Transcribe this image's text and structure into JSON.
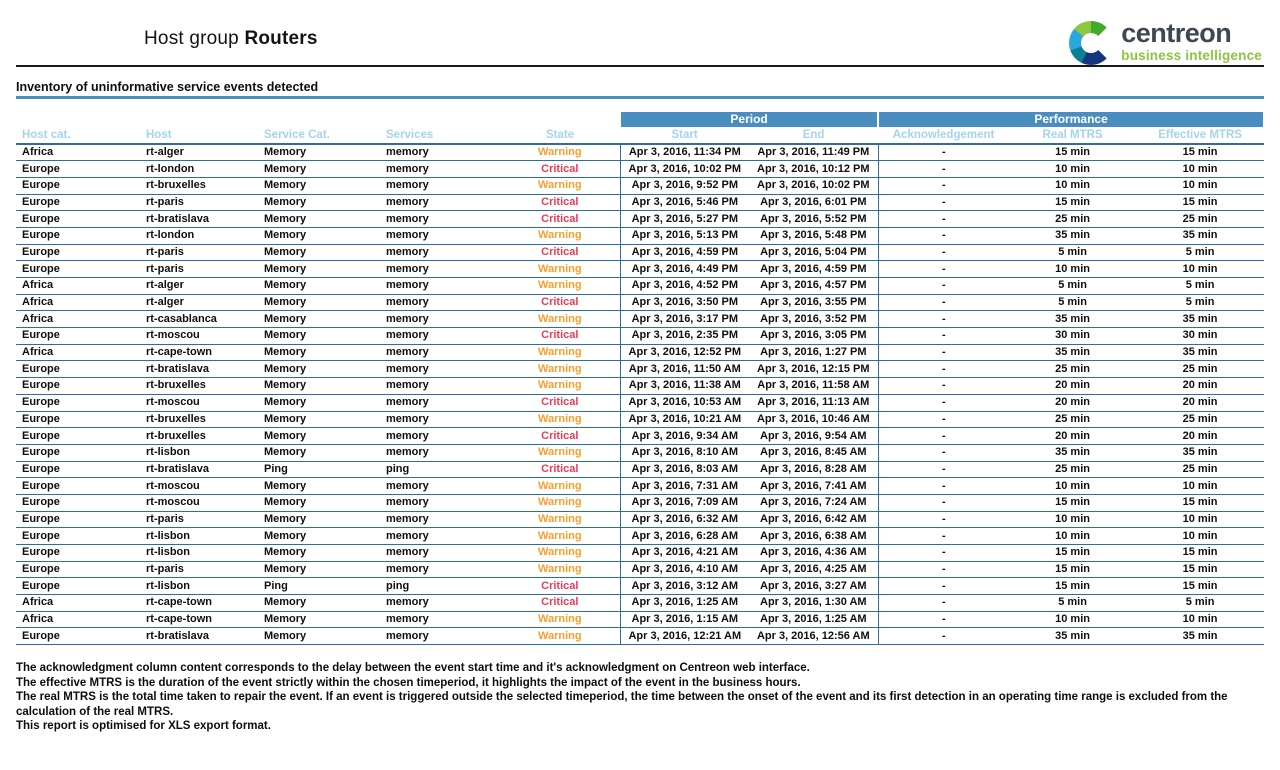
{
  "header": {
    "title_regular": "Host group",
    "title_bold": "Routers"
  },
  "logo": {
    "brand": "centreon",
    "tagline": "business intelligence"
  },
  "section_title": "Inventory of uninformative service events detected",
  "table": {
    "groups": {
      "period": "Period",
      "performance": "Performance"
    },
    "columns": [
      {
        "key": "host_cat",
        "label": "Host cat.",
        "align": "left"
      },
      {
        "key": "host",
        "label": "Host",
        "align": "left"
      },
      {
        "key": "service_cat",
        "label": "Service Cat.",
        "align": "left"
      },
      {
        "key": "services",
        "label": "Services",
        "align": "left"
      },
      {
        "key": "state",
        "label": "State",
        "align": "center"
      },
      {
        "key": "start",
        "label": "Start",
        "align": "center",
        "vline": true
      },
      {
        "key": "end",
        "label": "End",
        "align": "center"
      },
      {
        "key": "ack",
        "label": "Acknowledgement",
        "align": "center",
        "vline": true
      },
      {
        "key": "real_mtrs",
        "label": "Real MTRS",
        "align": "center"
      },
      {
        "key": "effective_mtrs",
        "label": "Effective MTRS",
        "align": "center"
      }
    ],
    "rows": [
      {
        "host_cat": "Africa",
        "host": "rt-alger",
        "service_cat": "Memory",
        "services": "memory",
        "state": "Warning",
        "start": "Apr 3, 2016, 11:34 PM",
        "end": "Apr 3, 2016, 11:49 PM",
        "ack": "-",
        "real_mtrs": "15 min",
        "effective_mtrs": "15 min"
      },
      {
        "host_cat": "Europe",
        "host": "rt-london",
        "service_cat": "Memory",
        "services": "memory",
        "state": "Critical",
        "start": "Apr 3, 2016, 10:02 PM",
        "end": "Apr 3, 2016, 10:12 PM",
        "ack": "-",
        "real_mtrs": "10 min",
        "effective_mtrs": "10 min"
      },
      {
        "host_cat": "Europe",
        "host": "rt-bruxelles",
        "service_cat": "Memory",
        "services": "memory",
        "state": "Warning",
        "start": "Apr 3, 2016, 9:52 PM",
        "end": "Apr 3, 2016, 10:02 PM",
        "ack": "-",
        "real_mtrs": "10 min",
        "effective_mtrs": "10 min"
      },
      {
        "host_cat": "Europe",
        "host": "rt-paris",
        "service_cat": "Memory",
        "services": "memory",
        "state": "Critical",
        "start": "Apr 3, 2016, 5:46 PM",
        "end": "Apr 3, 2016, 6:01 PM",
        "ack": "-",
        "real_mtrs": "15 min",
        "effective_mtrs": "15 min"
      },
      {
        "host_cat": "Europe",
        "host": "rt-bratislava",
        "service_cat": "Memory",
        "services": "memory",
        "state": "Critical",
        "start": "Apr 3, 2016, 5:27 PM",
        "end": "Apr 3, 2016, 5:52 PM",
        "ack": "-",
        "real_mtrs": "25 min",
        "effective_mtrs": "25 min"
      },
      {
        "host_cat": "Europe",
        "host": "rt-london",
        "service_cat": "Memory",
        "services": "memory",
        "state": "Warning",
        "start": "Apr 3, 2016, 5:13 PM",
        "end": "Apr 3, 2016, 5:48 PM",
        "ack": "-",
        "real_mtrs": "35 min",
        "effective_mtrs": "35 min"
      },
      {
        "host_cat": "Europe",
        "host": "rt-paris",
        "service_cat": "Memory",
        "services": "memory",
        "state": "Critical",
        "start": "Apr 3, 2016, 4:59 PM",
        "end": "Apr 3, 2016, 5:04 PM",
        "ack": "-",
        "real_mtrs": "5 min",
        "effective_mtrs": "5 min"
      },
      {
        "host_cat": "Europe",
        "host": "rt-paris",
        "service_cat": "Memory",
        "services": "memory",
        "state": "Warning",
        "start": "Apr 3, 2016, 4:49 PM",
        "end": "Apr 3, 2016, 4:59 PM",
        "ack": "-",
        "real_mtrs": "10 min",
        "effective_mtrs": "10 min"
      },
      {
        "host_cat": "Africa",
        "host": "rt-alger",
        "service_cat": "Memory",
        "services": "memory",
        "state": "Warning",
        "start": "Apr 3, 2016, 4:52 PM",
        "end": "Apr 3, 2016, 4:57 PM",
        "ack": "-",
        "real_mtrs": "5 min",
        "effective_mtrs": "5 min"
      },
      {
        "host_cat": "Africa",
        "host": "rt-alger",
        "service_cat": "Memory",
        "services": "memory",
        "state": "Critical",
        "start": "Apr 3, 2016, 3:50 PM",
        "end": "Apr 3, 2016, 3:55 PM",
        "ack": "-",
        "real_mtrs": "5 min",
        "effective_mtrs": "5 min"
      },
      {
        "host_cat": "Africa",
        "host": "rt-casablanca",
        "service_cat": "Memory",
        "services": "memory",
        "state": "Warning",
        "start": "Apr 3, 2016, 3:17 PM",
        "end": "Apr 3, 2016, 3:52 PM",
        "ack": "-",
        "real_mtrs": "35 min",
        "effective_mtrs": "35 min"
      },
      {
        "host_cat": "Europe",
        "host": "rt-moscou",
        "service_cat": "Memory",
        "services": "memory",
        "state": "Critical",
        "start": "Apr 3, 2016, 2:35 PM",
        "end": "Apr 3, 2016, 3:05 PM",
        "ack": "-",
        "real_mtrs": "30 min",
        "effective_mtrs": "30 min"
      },
      {
        "host_cat": "Africa",
        "host": "rt-cape-town",
        "service_cat": "Memory",
        "services": "memory",
        "state": "Warning",
        "start": "Apr 3, 2016, 12:52 PM",
        "end": "Apr 3, 2016, 1:27 PM",
        "ack": "-",
        "real_mtrs": "35 min",
        "effective_mtrs": "35 min"
      },
      {
        "host_cat": "Europe",
        "host": "rt-bratislava",
        "service_cat": "Memory",
        "services": "memory",
        "state": "Warning",
        "start": "Apr 3, 2016, 11:50 AM",
        "end": "Apr 3, 2016, 12:15 PM",
        "ack": "-",
        "real_mtrs": "25 min",
        "effective_mtrs": "25 min"
      },
      {
        "host_cat": "Europe",
        "host": "rt-bruxelles",
        "service_cat": "Memory",
        "services": "memory",
        "state": "Warning",
        "start": "Apr 3, 2016, 11:38 AM",
        "end": "Apr 3, 2016, 11:58 AM",
        "ack": "-",
        "real_mtrs": "20 min",
        "effective_mtrs": "20 min"
      },
      {
        "host_cat": "Europe",
        "host": "rt-moscou",
        "service_cat": "Memory",
        "services": "memory",
        "state": "Critical",
        "start": "Apr 3, 2016, 10:53 AM",
        "end": "Apr 3, 2016, 11:13 AM",
        "ack": "-",
        "real_mtrs": "20 min",
        "effective_mtrs": "20 min"
      },
      {
        "host_cat": "Europe",
        "host": "rt-bruxelles",
        "service_cat": "Memory",
        "services": "memory",
        "state": "Warning",
        "start": "Apr 3, 2016, 10:21 AM",
        "end": "Apr 3, 2016, 10:46 AM",
        "ack": "-",
        "real_mtrs": "25 min",
        "effective_mtrs": "25 min"
      },
      {
        "host_cat": "Europe",
        "host": "rt-bruxelles",
        "service_cat": "Memory",
        "services": "memory",
        "state": "Critical",
        "start": "Apr 3, 2016, 9:34 AM",
        "end": "Apr 3, 2016, 9:54 AM",
        "ack": "-",
        "real_mtrs": "20 min",
        "effective_mtrs": "20 min"
      },
      {
        "host_cat": "Europe",
        "host": "rt-lisbon",
        "service_cat": "Memory",
        "services": "memory",
        "state": "Warning",
        "start": "Apr 3, 2016, 8:10 AM",
        "end": "Apr 3, 2016, 8:45 AM",
        "ack": "-",
        "real_mtrs": "35 min",
        "effective_mtrs": "35 min"
      },
      {
        "host_cat": "Europe",
        "host": "rt-bratislava",
        "service_cat": "Ping",
        "services": "ping",
        "state": "Critical",
        "start": "Apr 3, 2016, 8:03 AM",
        "end": "Apr 3, 2016, 8:28 AM",
        "ack": "-",
        "real_mtrs": "25 min",
        "effective_mtrs": "25 min"
      },
      {
        "host_cat": "Europe",
        "host": "rt-moscou",
        "service_cat": "Memory",
        "services": "memory",
        "state": "Warning",
        "start": "Apr 3, 2016, 7:31 AM",
        "end": "Apr 3, 2016, 7:41 AM",
        "ack": "-",
        "real_mtrs": "10 min",
        "effective_mtrs": "10 min"
      },
      {
        "host_cat": "Europe",
        "host": "rt-moscou",
        "service_cat": "Memory",
        "services": "memory",
        "state": "Warning",
        "start": "Apr 3, 2016, 7:09 AM",
        "end": "Apr 3, 2016, 7:24 AM",
        "ack": "-",
        "real_mtrs": "15 min",
        "effective_mtrs": "15 min"
      },
      {
        "host_cat": "Europe",
        "host": "rt-paris",
        "service_cat": "Memory",
        "services": "memory",
        "state": "Warning",
        "start": "Apr 3, 2016, 6:32 AM",
        "end": "Apr 3, 2016, 6:42 AM",
        "ack": "-",
        "real_mtrs": "10 min",
        "effective_mtrs": "10 min"
      },
      {
        "host_cat": "Europe",
        "host": "rt-lisbon",
        "service_cat": "Memory",
        "services": "memory",
        "state": "Warning",
        "start": "Apr 3, 2016, 6:28 AM",
        "end": "Apr 3, 2016, 6:38 AM",
        "ack": "-",
        "real_mtrs": "10 min",
        "effective_mtrs": "10 min"
      },
      {
        "host_cat": "Europe",
        "host": "rt-lisbon",
        "service_cat": "Memory",
        "services": "memory",
        "state": "Warning",
        "start": "Apr 3, 2016, 4:21 AM",
        "end": "Apr 3, 2016, 4:36 AM",
        "ack": "-",
        "real_mtrs": "15 min",
        "effective_mtrs": "15 min"
      },
      {
        "host_cat": "Europe",
        "host": "rt-paris",
        "service_cat": "Memory",
        "services": "memory",
        "state": "Warning",
        "start": "Apr 3, 2016, 4:10 AM",
        "end": "Apr 3, 2016, 4:25 AM",
        "ack": "-",
        "real_mtrs": "15 min",
        "effective_mtrs": "15 min"
      },
      {
        "host_cat": "Europe",
        "host": "rt-lisbon",
        "service_cat": "Ping",
        "services": "ping",
        "state": "Critical",
        "start": "Apr 3, 2016, 3:12 AM",
        "end": "Apr 3, 2016, 3:27 AM",
        "ack": "-",
        "real_mtrs": "15 min",
        "effective_mtrs": "15 min"
      },
      {
        "host_cat": "Africa",
        "host": "rt-cape-town",
        "service_cat": "Memory",
        "services": "memory",
        "state": "Critical",
        "start": "Apr 3, 2016, 1:25 AM",
        "end": "Apr 3, 2016, 1:30 AM",
        "ack": "-",
        "real_mtrs": "5 min",
        "effective_mtrs": "5 min"
      },
      {
        "host_cat": "Africa",
        "host": "rt-cape-town",
        "service_cat": "Memory",
        "services": "memory",
        "state": "Warning",
        "start": "Apr 3, 2016, 1:15 AM",
        "end": "Apr 3, 2016, 1:25 AM",
        "ack": "-",
        "real_mtrs": "10 min",
        "effective_mtrs": "10 min"
      },
      {
        "host_cat": "Europe",
        "host": "rt-bratislava",
        "service_cat": "Memory",
        "services": "memory",
        "state": "Warning",
        "start": "Apr 3, 2016, 12:21 AM",
        "end": "Apr 3, 2016, 12:56 AM",
        "ack": "-",
        "real_mtrs": "35 min",
        "effective_mtrs": "35 min"
      }
    ]
  },
  "state_colors": {
    "Warning": "#f5a02c",
    "Critical": "#ee3a56"
  },
  "footnotes": [
    "The acknowledgment column content corresponds to the delay between the event start time and it's acknowledgment on Centreon web interface.",
    "The effective MTRS is the duration of the event strictly within the chosen timeperiod, it highlights the impact of the event in the business hours.",
    "The real MTRS is the total time taken to repair the event. If an event is triggered outside the selected timeperiod, the time between the onset of the event and its first detection in an operating time range is excluded from the calculation of the real MTRS.",
    "This report is optimised for XLS export format."
  ]
}
